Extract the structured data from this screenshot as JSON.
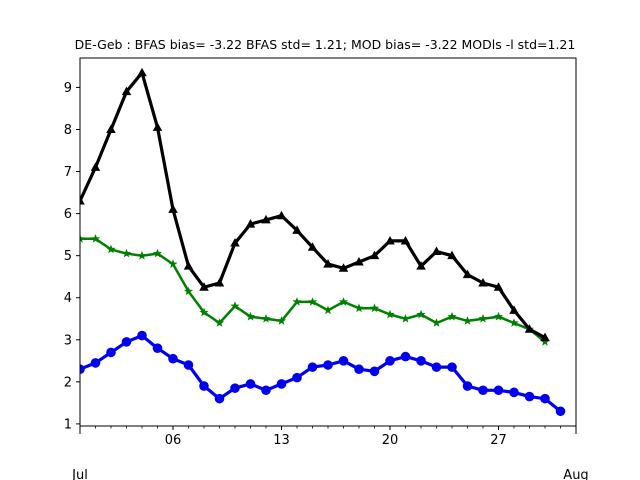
{
  "chart_data": {
    "type": "line",
    "title": "DE-Geb   : BFAS bias= -3.22 BFAS std= 1.21; MOD bias= -3.22 MODls -l std=1.21",
    "xlabel": "",
    "ylabel": "",
    "x": [
      "2019-06-30",
      "2019-07-01",
      "2019-07-02",
      "2019-07-03",
      "2019-07-04",
      "2019-07-05",
      "2019-07-06",
      "2019-07-07",
      "2019-07-08",
      "2019-07-09",
      "2019-07-10",
      "2019-07-11",
      "2019-07-12",
      "2019-07-13",
      "2019-07-14",
      "2019-07-15",
      "2019-07-16",
      "2019-07-17",
      "2019-07-18",
      "2019-07-19",
      "2019-07-20",
      "2019-07-21",
      "2019-07-22",
      "2019-07-23",
      "2019-07-24",
      "2019-07-25",
      "2019-07-26",
      "2019-07-27",
      "2019-07-28",
      "2019-07-29",
      "2019-07-30",
      "2019-07-31",
      "2019-08-01"
    ],
    "xlim": [
      "2019-06-30",
      "2019-08-01"
    ],
    "ylim": [
      0.95,
      9.7
    ],
    "x_ticks_minor": [
      {
        "date": "2019-07-06",
        "label": "06"
      },
      {
        "date": "2019-07-13",
        "label": "13"
      },
      {
        "date": "2019-07-20",
        "label": "20"
      },
      {
        "date": "2019-07-27",
        "label": "27"
      }
    ],
    "x_ticks_major": [
      {
        "date": "2019-06-30",
        "label": "Jul"
      },
      {
        "date": "2019-08-01",
        "label": "Aug"
      }
    ],
    "y_ticks": [
      1,
      2,
      3,
      4,
      5,
      6,
      7,
      8,
      9
    ],
    "grid": false,
    "series": [
      {
        "marker": "triangle",
        "color": "#000000",
        "values": [
          6.3,
          7.1,
          8.0,
          8.9,
          9.35,
          8.05,
          6.1,
          4.75,
          4.25,
          4.35,
          5.3,
          5.75,
          5.85,
          5.95,
          5.6,
          5.2,
          4.8,
          4.7,
          4.85,
          5.0,
          5.35,
          5.35,
          4.75,
          5.1,
          5.0,
          4.55,
          4.35,
          4.25,
          3.7,
          3.25,
          3.05,
          null,
          null
        ]
      },
      {
        "marker": "star",
        "color": "#008000",
        "values": [
          5.4,
          5.4,
          5.15,
          5.05,
          5.0,
          5.05,
          4.8,
          4.15,
          3.65,
          3.4,
          3.8,
          3.55,
          3.5,
          3.45,
          3.9,
          3.9,
          3.7,
          3.9,
          3.75,
          3.75,
          3.6,
          3.5,
          3.6,
          3.4,
          3.55,
          3.45,
          3.5,
          3.55,
          3.4,
          3.25,
          2.95,
          null,
          null
        ]
      },
      {
        "marker": "circle",
        "color": "#0000ee",
        "values": [
          2.3,
          2.45,
          2.7,
          2.95,
          3.1,
          2.8,
          2.55,
          2.4,
          1.9,
          1.6,
          1.85,
          1.95,
          1.8,
          1.95,
          2.1,
          2.35,
          2.4,
          2.5,
          2.3,
          2.25,
          2.5,
          2.6,
          2.5,
          2.35,
          2.35,
          1.9,
          1.8,
          1.8,
          1.75,
          1.65,
          1.6,
          1.3,
          null
        ]
      }
    ]
  }
}
